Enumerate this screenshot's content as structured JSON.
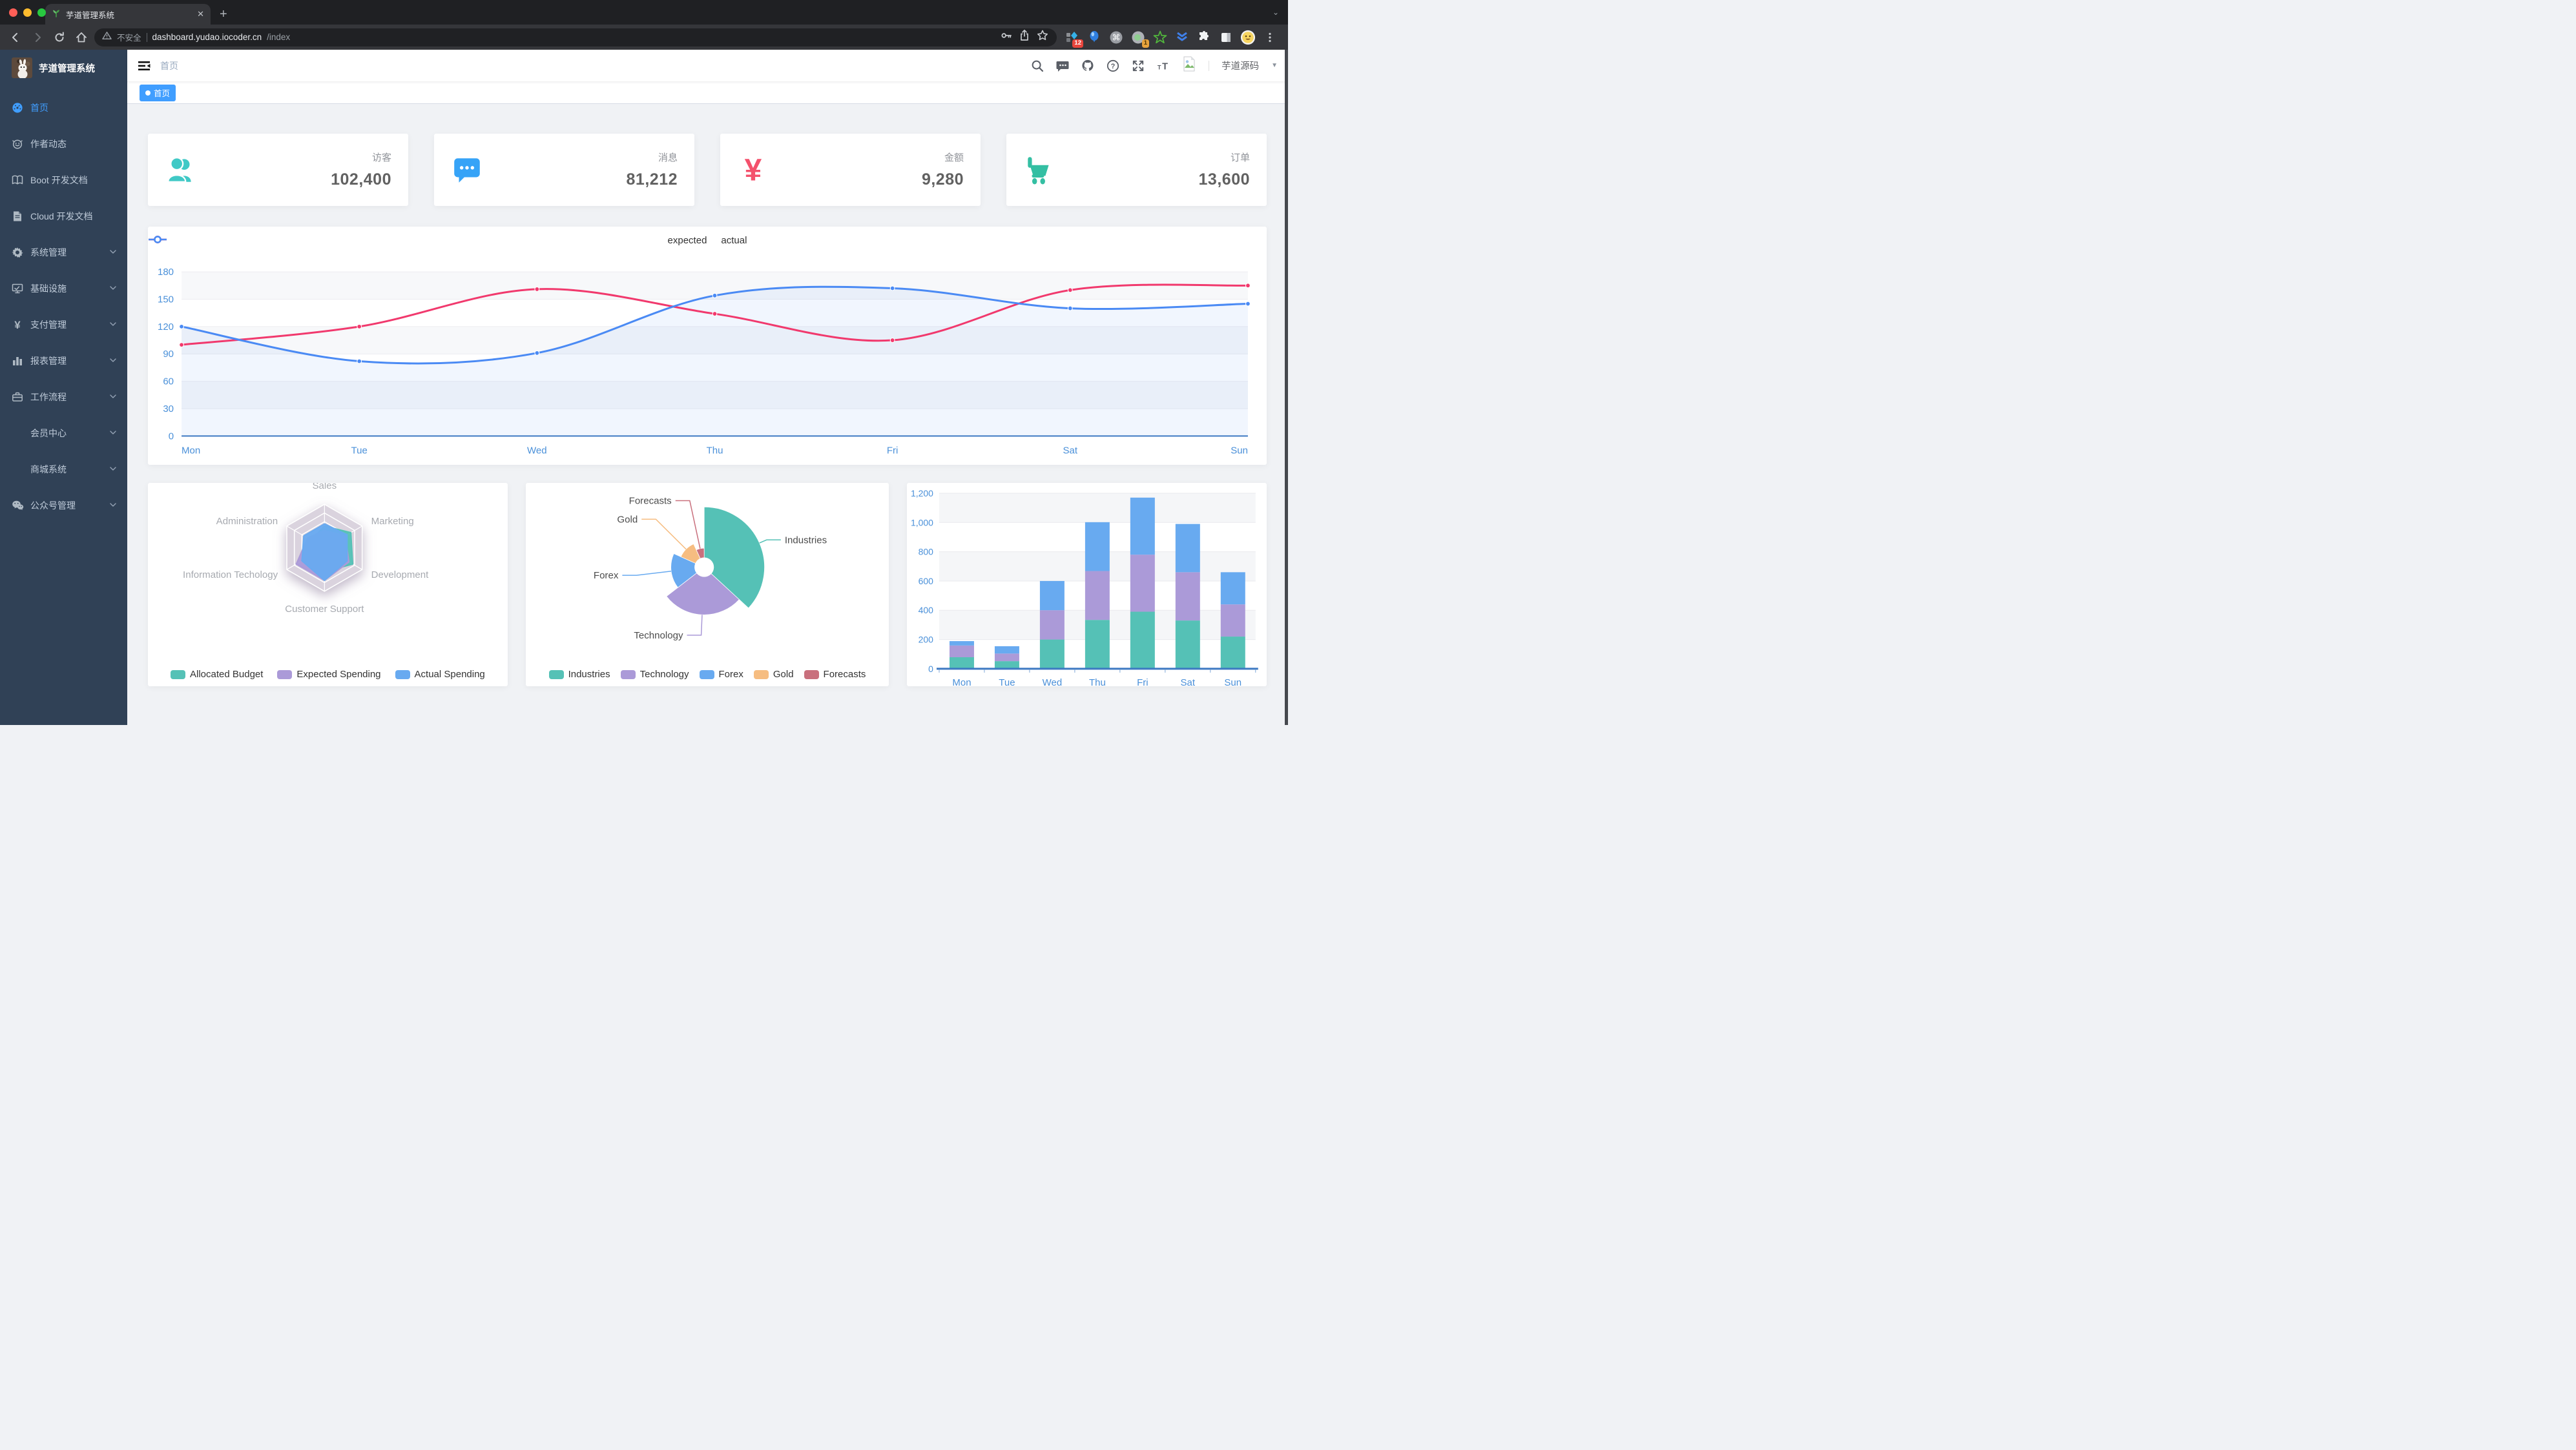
{
  "browser": {
    "tab": {
      "title": "芋道管理系统"
    },
    "url": {
      "security_label": "不安全",
      "host": "dashboard.yudao.iocoder.cn",
      "path": "/index"
    },
    "extensions": {
      "badge_red": "12",
      "badge_orange": "1"
    }
  },
  "sidebar": {
    "app_title": "芋道管理系统",
    "items": [
      {
        "label": "首页",
        "icon": "dashboard-icon",
        "active": true,
        "expandable": false,
        "sub": false
      },
      {
        "label": "作者动态",
        "icon": "people-icon",
        "active": false,
        "expandable": false,
        "sub": false
      },
      {
        "label": "Boot 开发文档",
        "icon": "book-icon",
        "active": false,
        "expandable": false,
        "sub": false
      },
      {
        "label": "Cloud 开发文档",
        "icon": "document-icon",
        "active": false,
        "expandable": false,
        "sub": false
      },
      {
        "label": "系统管理",
        "icon": "gear-icon",
        "active": false,
        "expandable": true,
        "sub": false
      },
      {
        "label": "基础设施",
        "icon": "monitor-icon",
        "active": false,
        "expandable": true,
        "sub": false
      },
      {
        "label": "支付管理",
        "icon": "yen-icon",
        "active": false,
        "expandable": true,
        "sub": false
      },
      {
        "label": "报表管理",
        "icon": "bar-chart-icon",
        "active": false,
        "expandable": true,
        "sub": false
      },
      {
        "label": "工作流程",
        "icon": "briefcase-icon",
        "active": false,
        "expandable": true,
        "sub": false
      },
      {
        "label": "会员中心",
        "icon": "",
        "active": false,
        "expandable": true,
        "sub": true
      },
      {
        "label": "商城系统",
        "icon": "",
        "active": false,
        "expandable": true,
        "sub": true
      },
      {
        "label": "公众号管理",
        "icon": "wechat-icon",
        "active": false,
        "expandable": true,
        "sub": false
      }
    ]
  },
  "navbar": {
    "breadcrumb": "首页",
    "user_name": "芋道源码"
  },
  "tags": [
    {
      "label": "首页",
      "active": true
    }
  ],
  "stats": [
    {
      "label": "访客",
      "value": "102,400",
      "icon": "peoples-icon",
      "color": "#40c9c6"
    },
    {
      "label": "消息",
      "value": "81,212",
      "icon": "message-icon",
      "color": "#36a3f7"
    },
    {
      "label": "金额",
      "value": "9,280",
      "icon": "money-icon",
      "color": "#f4516c"
    },
    {
      "label": "订单",
      "value": "13,600",
      "icon": "cart-icon",
      "color": "#34bfa3"
    }
  ],
  "chart_data": [
    {
      "type": "line",
      "x": [
        "Mon",
        "Tue",
        "Wed",
        "Thu",
        "Fri",
        "Sat",
        "Sun"
      ],
      "series": [
        {
          "name": "expected",
          "color": "#f1396d",
          "values": [
            100,
            120,
            161,
            134,
            105,
            160,
            165
          ],
          "area": false
        },
        {
          "name": "actual",
          "color": "#4a8af4",
          "values": [
            120,
            82,
            91,
            154,
            162,
            140,
            145
          ],
          "area": true
        }
      ],
      "ylim": [
        0,
        180
      ],
      "ytick": 30,
      "grid": true,
      "legend_position": "top"
    },
    {
      "type": "radar",
      "indicators": [
        {
          "name": "Sales",
          "max": 10000
        },
        {
          "name": "Marketing",
          "max": 20000
        },
        {
          "name": "Development",
          "max": 20000
        },
        {
          "name": "Customer Support",
          "max": 20000
        },
        {
          "name": "Information Techology",
          "max": 20000
        },
        {
          "name": "Administration",
          "max": 20000
        }
      ],
      "series": [
        {
          "name": "Allocated Budget",
          "color": "#55c1b6",
          "values": [
            5000,
            14000,
            15000,
            11000,
            12000,
            7000
          ]
        },
        {
          "name": "Expected Spending",
          "color": "#ab9ad8",
          "values": [
            4000,
            11000,
            13000,
            15000,
            15000,
            9000
          ]
        },
        {
          "name": "Actual Spending",
          "color": "#68aaf0",
          "values": [
            5500,
            12000,
            12000,
            15000,
            12000,
            11000
          ]
        }
      ],
      "legend_position": "bottom"
    },
    {
      "type": "pie",
      "rose": true,
      "items": [
        {
          "name": "Industries",
          "value": 320,
          "color": "#55c1b6"
        },
        {
          "name": "Technology",
          "value": 240,
          "color": "#ab9ad8"
        },
        {
          "name": "Forex",
          "value": 149,
          "color": "#68aaf0"
        },
        {
          "name": "Gold",
          "value": 100,
          "color": "#f6bd81"
        },
        {
          "name": "Forecasts",
          "value": 59,
          "color": "#c9707d"
        }
      ],
      "legend_position": "bottom"
    },
    {
      "type": "bar",
      "stacked": true,
      "categories": [
        "Mon",
        "Tue",
        "Wed",
        "Thu",
        "Fri",
        "Sat",
        "Sun"
      ],
      "series": [
        {
          "color": "#55c1b6",
          "values": [
            79,
            52,
            200,
            334,
            390,
            330,
            220
          ]
        },
        {
          "color": "#ab9ad8",
          "values": [
            80,
            52,
            200,
            334,
            390,
            330,
            220
          ]
        },
        {
          "color": "#68aaf0",
          "values": [
            30,
            50,
            200,
            334,
            390,
            330,
            220
          ]
        }
      ],
      "ylim": [
        0,
        1200
      ],
      "ytick": 200,
      "grid": true
    }
  ]
}
